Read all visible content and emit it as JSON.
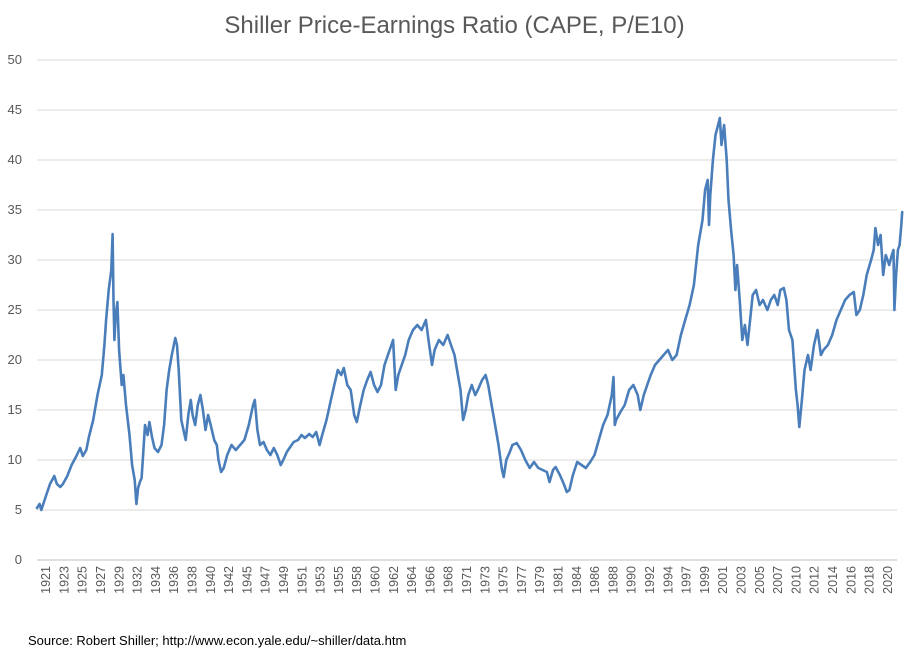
{
  "chart_data": {
    "type": "line",
    "title": "Shiller Price-Earnings Ratio (CAPE, P/E10)",
    "xlabel": "",
    "ylabel": "",
    "ylim": [
      0,
      50
    ],
    "xlim": [
      1921,
      2020.5
    ],
    "y_ticks": [
      0,
      5,
      10,
      15,
      20,
      25,
      30,
      35,
      40,
      45,
      50
    ],
    "x_tick_labels": [
      "1921",
      "1923",
      "1925",
      "1927",
      "1929",
      "1932",
      "1934",
      "1936",
      "1938",
      "1940",
      "1942",
      "1945",
      "1947",
      "1949",
      "1951",
      "1953",
      "1955",
      "1958",
      "1960",
      "1962",
      "1964",
      "1966",
      "1968",
      "1971",
      "1973",
      "1975",
      "1977",
      "1979",
      "1981",
      "1984",
      "1986",
      "1988",
      "1990",
      "1992",
      "1994",
      "1997",
      "1999",
      "2001",
      "2003",
      "2005",
      "2007",
      "2010",
      "2012",
      "2014",
      "2016",
      "2018",
      "2020"
    ],
    "grid": "horizontal",
    "line_color": "#4a7ebb",
    "series": [
      {
        "name": "CAPE",
        "points": [
          [
            1921.0,
            5.2
          ],
          [
            1921.3,
            5.6
          ],
          [
            1921.5,
            5.0
          ],
          [
            1922.0,
            6.3
          ],
          [
            1922.5,
            7.6
          ],
          [
            1923.0,
            8.4
          ],
          [
            1923.3,
            7.6
          ],
          [
            1923.7,
            7.3
          ],
          [
            1924.0,
            7.6
          ],
          [
            1924.5,
            8.4
          ],
          [
            1925.0,
            9.5
          ],
          [
            1925.5,
            10.3
          ],
          [
            1926.0,
            11.2
          ],
          [
            1926.3,
            10.4
          ],
          [
            1926.7,
            11.0
          ],
          [
            1927.0,
            12.3
          ],
          [
            1927.5,
            14.0
          ],
          [
            1928.0,
            16.5
          ],
          [
            1928.5,
            18.5
          ],
          [
            1928.8,
            21.5
          ],
          [
            1929.0,
            24.0
          ],
          [
            1929.3,
            27.0
          ],
          [
            1929.6,
            29.0
          ],
          [
            1929.75,
            32.6
          ],
          [
            1929.85,
            26.0
          ],
          [
            1929.95,
            22.0
          ],
          [
            1930.1,
            24.5
          ],
          [
            1930.3,
            25.8
          ],
          [
            1930.5,
            21.0
          ],
          [
            1930.8,
            17.5
          ],
          [
            1931.0,
            18.5
          ],
          [
            1931.3,
            15.5
          ],
          [
            1931.7,
            12.5
          ],
          [
            1932.0,
            9.5
          ],
          [
            1932.3,
            8.0
          ],
          [
            1932.5,
            5.6
          ],
          [
            1932.7,
            7.2
          ],
          [
            1932.9,
            7.8
          ],
          [
            1933.1,
            8.2
          ],
          [
            1933.3,
            10.8
          ],
          [
            1933.5,
            13.5
          ],
          [
            1933.8,
            12.5
          ],
          [
            1934.0,
            13.8
          ],
          [
            1934.3,
            12.3
          ],
          [
            1934.6,
            11.2
          ],
          [
            1935.0,
            10.8
          ],
          [
            1935.4,
            11.5
          ],
          [
            1935.7,
            13.5
          ],
          [
            1936.0,
            17.0
          ],
          [
            1936.3,
            19.0
          ],
          [
            1936.6,
            20.5
          ],
          [
            1937.0,
            22.2
          ],
          [
            1937.2,
            21.5
          ],
          [
            1937.4,
            19.0
          ],
          [
            1937.7,
            14.0
          ],
          [
            1938.0,
            12.8
          ],
          [
            1938.2,
            12.0
          ],
          [
            1938.5,
            14.5
          ],
          [
            1938.8,
            16.0
          ],
          [
            1939.0,
            14.5
          ],
          [
            1939.3,
            13.5
          ],
          [
            1939.6,
            15.5
          ],
          [
            1939.9,
            16.5
          ],
          [
            1940.2,
            15.0
          ],
          [
            1940.5,
            13.0
          ],
          [
            1940.8,
            14.5
          ],
          [
            1941.1,
            13.5
          ],
          [
            1941.5,
            12.0
          ],
          [
            1941.8,
            11.5
          ],
          [
            1942.0,
            10.0
          ],
          [
            1942.3,
            8.8
          ],
          [
            1942.6,
            9.2
          ],
          [
            1943.0,
            10.5
          ],
          [
            1943.5,
            11.5
          ],
          [
            1944.0,
            11.0
          ],
          [
            1944.5,
            11.5
          ],
          [
            1945.0,
            12.0
          ],
          [
            1945.5,
            13.5
          ],
          [
            1946.0,
            15.5
          ],
          [
            1946.2,
            16.0
          ],
          [
            1946.5,
            13.0
          ],
          [
            1946.8,
            11.5
          ],
          [
            1947.2,
            11.8
          ],
          [
            1947.6,
            11.0
          ],
          [
            1948.0,
            10.5
          ],
          [
            1948.4,
            11.2
          ],
          [
            1948.8,
            10.5
          ],
          [
            1949.2,
            9.5
          ],
          [
            1949.5,
            10.0
          ],
          [
            1949.9,
            10.8
          ],
          [
            1950.3,
            11.3
          ],
          [
            1950.7,
            11.8
          ],
          [
            1951.2,
            12.0
          ],
          [
            1951.6,
            12.5
          ],
          [
            1952.0,
            12.2
          ],
          [
            1952.5,
            12.6
          ],
          [
            1952.9,
            12.3
          ],
          [
            1953.3,
            12.8
          ],
          [
            1953.7,
            11.5
          ],
          [
            1954.0,
            12.5
          ],
          [
            1954.5,
            14.0
          ],
          [
            1955.0,
            16.0
          ],
          [
            1955.4,
            17.5
          ],
          [
            1955.8,
            19.0
          ],
          [
            1956.2,
            18.5
          ],
          [
            1956.5,
            19.2
          ],
          [
            1956.9,
            17.5
          ],
          [
            1957.3,
            17.0
          ],
          [
            1957.7,
            14.5
          ],
          [
            1958.0,
            13.8
          ],
          [
            1958.4,
            15.5
          ],
          [
            1958.8,
            17.0
          ],
          [
            1959.2,
            18.0
          ],
          [
            1959.6,
            18.8
          ],
          [
            1960.0,
            17.5
          ],
          [
            1960.4,
            16.8
          ],
          [
            1960.8,
            17.5
          ],
          [
            1961.2,
            19.5
          ],
          [
            1961.6,
            20.5
          ],
          [
            1962.0,
            21.5
          ],
          [
            1962.2,
            22.0
          ],
          [
            1962.5,
            17.0
          ],
          [
            1962.8,
            18.5
          ],
          [
            1963.2,
            19.5
          ],
          [
            1963.6,
            20.5
          ],
          [
            1964.0,
            22.0
          ],
          [
            1964.5,
            23.0
          ],
          [
            1965.0,
            23.5
          ],
          [
            1965.5,
            23.0
          ],
          [
            1966.0,
            24.0
          ],
          [
            1966.3,
            22.0
          ],
          [
            1966.7,
            19.5
          ],
          [
            1967.0,
            21.0
          ],
          [
            1967.5,
            22.0
          ],
          [
            1968.0,
            21.5
          ],
          [
            1968.5,
            22.5
          ],
          [
            1968.9,
            21.5
          ],
          [
            1969.3,
            20.5
          ],
          [
            1969.7,
            18.5
          ],
          [
            1970.0,
            17.0
          ],
          [
            1970.3,
            14.0
          ],
          [
            1970.6,
            15.0
          ],
          [
            1970.9,
            16.5
          ],
          [
            1971.3,
            17.5
          ],
          [
            1971.7,
            16.5
          ],
          [
            1972.0,
            17.0
          ],
          [
            1972.5,
            18.0
          ],
          [
            1972.9,
            18.5
          ],
          [
            1973.2,
            17.5
          ],
          [
            1973.6,
            15.5
          ],
          [
            1974.0,
            13.5
          ],
          [
            1974.4,
            11.5
          ],
          [
            1974.8,
            9.0
          ],
          [
            1975.0,
            8.3
          ],
          [
            1975.3,
            10.0
          ],
          [
            1975.7,
            10.8
          ],
          [
            1976.0,
            11.5
          ],
          [
            1976.5,
            11.7
          ],
          [
            1977.0,
            11.0
          ],
          [
            1977.5,
            10.0
          ],
          [
            1978.0,
            9.2
          ],
          [
            1978.5,
            9.8
          ],
          [
            1979.0,
            9.2
          ],
          [
            1979.5,
            9.0
          ],
          [
            1980.0,
            8.8
          ],
          [
            1980.3,
            7.8
          ],
          [
            1980.7,
            9.0
          ],
          [
            1981.0,
            9.3
          ],
          [
            1981.5,
            8.5
          ],
          [
            1982.0,
            7.5
          ],
          [
            1982.3,
            6.8
          ],
          [
            1982.6,
            7.0
          ],
          [
            1983.0,
            8.5
          ],
          [
            1983.5,
            9.8
          ],
          [
            1984.0,
            9.5
          ],
          [
            1984.5,
            9.2
          ],
          [
            1985.0,
            9.8
          ],
          [
            1985.5,
            10.5
          ],
          [
            1986.0,
            12.0
          ],
          [
            1986.5,
            13.5
          ],
          [
            1987.0,
            14.5
          ],
          [
            1987.5,
            16.5
          ],
          [
            1987.7,
            18.3
          ],
          [
            1987.85,
            13.5
          ],
          [
            1988.0,
            14.0
          ],
          [
            1988.5,
            14.8
          ],
          [
            1989.0,
            15.5
          ],
          [
            1989.5,
            17.0
          ],
          [
            1990.0,
            17.5
          ],
          [
            1990.5,
            16.5
          ],
          [
            1990.8,
            15.0
          ],
          [
            1991.2,
            16.5
          ],
          [
            1991.6,
            17.5
          ],
          [
            1992.0,
            18.5
          ],
          [
            1992.5,
            19.5
          ],
          [
            1993.0,
            20.0
          ],
          [
            1993.5,
            20.5
          ],
          [
            1994.0,
            21.0
          ],
          [
            1994.5,
            20.0
          ],
          [
            1995.0,
            20.5
          ],
          [
            1995.5,
            22.5
          ],
          [
            1996.0,
            24.0
          ],
          [
            1996.5,
            25.5
          ],
          [
            1997.0,
            27.5
          ],
          [
            1997.5,
            31.5
          ],
          [
            1997.8,
            33.0
          ],
          [
            1998.0,
            34.0
          ],
          [
            1998.3,
            37.0
          ],
          [
            1998.6,
            38.0
          ],
          [
            1998.75,
            33.5
          ],
          [
            1998.9,
            36.5
          ],
          [
            1999.2,
            40.0
          ],
          [
            1999.5,
            42.5
          ],
          [
            1999.8,
            43.5
          ],
          [
            2000.0,
            44.2
          ],
          [
            2000.2,
            41.5
          ],
          [
            2000.5,
            43.5
          ],
          [
            2000.8,
            40.0
          ],
          [
            2001.0,
            36.0
          ],
          [
            2001.3,
            33.0
          ],
          [
            2001.6,
            30.5
          ],
          [
            2001.8,
            27.0
          ],
          [
            2002.0,
            29.5
          ],
          [
            2002.3,
            26.0
          ],
          [
            2002.6,
            22.0
          ],
          [
            2002.9,
            23.5
          ],
          [
            2003.2,
            21.5
          ],
          [
            2003.5,
            24.0
          ],
          [
            2003.8,
            26.5
          ],
          [
            2004.2,
            27.0
          ],
          [
            2004.6,
            25.5
          ],
          [
            2005.0,
            26.0
          ],
          [
            2005.5,
            25.0
          ],
          [
            2005.9,
            26.0
          ],
          [
            2006.3,
            26.5
          ],
          [
            2006.7,
            25.5
          ],
          [
            2007.0,
            27.0
          ],
          [
            2007.4,
            27.2
          ],
          [
            2007.7,
            26.0
          ],
          [
            2008.0,
            23.0
          ],
          [
            2008.4,
            22.0
          ],
          [
            2008.8,
            17.0
          ],
          [
            2009.0,
            15.5
          ],
          [
            2009.2,
            13.3
          ],
          [
            2009.5,
            16.0
          ],
          [
            2009.8,
            19.0
          ],
          [
            2010.2,
            20.5
          ],
          [
            2010.5,
            19.0
          ],
          [
            2010.9,
            21.5
          ],
          [
            2011.3,
            23.0
          ],
          [
            2011.7,
            20.5
          ],
          [
            2012.0,
            21.0
          ],
          [
            2012.5,
            21.5
          ],
          [
            2013.0,
            22.5
          ],
          [
            2013.5,
            24.0
          ],
          [
            2014.0,
            25.0
          ],
          [
            2014.5,
            26.0
          ],
          [
            2015.0,
            26.5
          ],
          [
            2015.5,
            26.8
          ],
          [
            2015.8,
            24.5
          ],
          [
            2016.2,
            25.0
          ],
          [
            2016.6,
            26.5
          ],
          [
            2017.0,
            28.5
          ],
          [
            2017.5,
            30.0
          ],
          [
            2017.8,
            31.0
          ],
          [
            2018.0,
            33.2
          ],
          [
            2018.3,
            31.5
          ],
          [
            2018.6,
            32.5
          ],
          [
            2018.9,
            28.5
          ],
          [
            2019.2,
            30.5
          ],
          [
            2019.6,
            29.5
          ],
          [
            2019.9,
            30.5
          ],
          [
            2020.1,
            31.0
          ],
          [
            2020.2,
            25.0
          ],
          [
            2020.4,
            28.5
          ],
          [
            2020.6,
            31.0
          ],
          [
            2020.8,
            31.5
          ],
          [
            2021.0,
            33.5
          ],
          [
            2021.1,
            34.8
          ]
        ]
      }
    ]
  },
  "source_note": "Source: Robert Shiller; http://www.econ.yale.edu/~shiller/data.htm"
}
